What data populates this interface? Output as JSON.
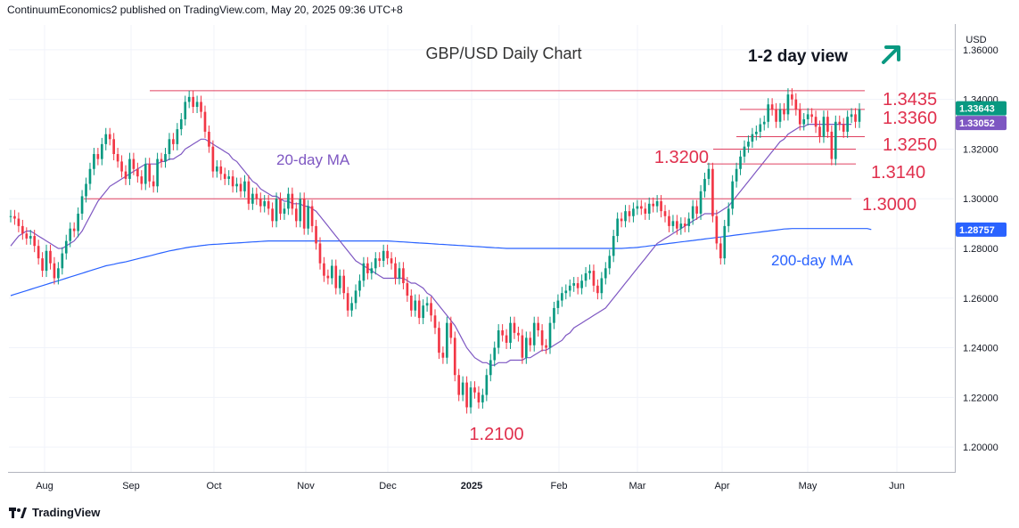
{
  "header": {
    "publisher_line": "ContinuumEconomics2 published on TradingView.com, May 20, 2025 09:36 UTC+8"
  },
  "footer": {
    "brand": "TradingView",
    "logo_icon": "tradingview-logo-icon"
  },
  "chart_data": {
    "type": "candlestick",
    "title": "GBP/USD Daily Chart",
    "view_label": "1-2 day view",
    "view_arrow": "up-right-arrow",
    "currency_label": "USD",
    "colors": {
      "up": "#089981",
      "down": "#f23645",
      "ma20": "#7e57c2",
      "ma200": "#2962ff",
      "levels": "#e04060",
      "label_red": "#e0304d",
      "arrow": "#089981"
    },
    "ylim": [
      1.19,
      1.37
    ],
    "y_ticks": [
      "1.36000",
      "1.34000",
      "1.32000",
      "1.30000",
      "1.28000",
      "1.26000",
      "1.24000",
      "1.22000",
      "1.20000"
    ],
    "x_ticks": [
      "Aug",
      "Sep",
      "Oct",
      "Nov",
      "Dec",
      "2025",
      "Feb",
      "Mar",
      "Apr",
      "May",
      "Jun"
    ],
    "price_badges": [
      {
        "value": "1.33643",
        "color": "#089981"
      },
      {
        "value": "1.33052",
        "color": "#7e57c2"
      },
      {
        "value": "1.28757",
        "color": "#2962ff"
      }
    ],
    "levels": [
      {
        "label": "1.3435",
        "value": 1.3435
      },
      {
        "label": "1.3360",
        "value": 1.336
      },
      {
        "label": "1.3250",
        "value": 1.325
      },
      {
        "label": "1.3200",
        "value": 1.32
      },
      {
        "label": "1.3140",
        "value": 1.314
      },
      {
        "label": "1.3000",
        "value": 1.3
      },
      {
        "label": "1.2100",
        "value": 1.21
      }
    ],
    "ma_labels": {
      "ma20": "20-day MA",
      "ma200": "200-day MA"
    },
    "closes": [
      1.293,
      1.292,
      1.289,
      1.286,
      1.284,
      1.285,
      1.281,
      1.276,
      1.271,
      1.279,
      1.274,
      1.268,
      1.272,
      1.278,
      1.283,
      1.288,
      1.287,
      1.294,
      1.301,
      1.306,
      1.312,
      1.318,
      1.316,
      1.322,
      1.326,
      1.324,
      1.318,
      1.315,
      1.311,
      1.308,
      1.316,
      1.312,
      1.309,
      1.306,
      1.314,
      1.307,
      1.305,
      1.316,
      1.315,
      1.318,
      1.324,
      1.322,
      1.328,
      1.332,
      1.339,
      1.341,
      1.337,
      1.339,
      1.335,
      1.327,
      1.321,
      1.311,
      1.313,
      1.31,
      1.308,
      1.309,
      1.305,
      1.306,
      1.303,
      1.307,
      1.298,
      1.302,
      1.3,
      1.297,
      1.299,
      1.296,
      1.291,
      1.3,
      1.294,
      1.296,
      1.302,
      1.296,
      1.291,
      1.3,
      1.288,
      1.297,
      1.289,
      1.282,
      1.274,
      1.269,
      1.268,
      1.273,
      1.264,
      1.269,
      1.262,
      1.255,
      1.258,
      1.263,
      1.267,
      1.274,
      1.27,
      1.272,
      1.276,
      1.275,
      1.279,
      1.276,
      1.274,
      1.268,
      1.272,
      1.266,
      1.261,
      1.255,
      1.259,
      1.252,
      1.257,
      1.258,
      1.253,
      1.248,
      1.238,
      1.236,
      1.25,
      1.244,
      1.229,
      1.221,
      1.226,
      1.216,
      1.224,
      1.222,
      1.218,
      1.221,
      1.229,
      1.235,
      1.24,
      1.247,
      1.245,
      1.242,
      1.25,
      1.246,
      1.245,
      1.236,
      1.244,
      1.241,
      1.25,
      1.247,
      1.241,
      1.24,
      1.25,
      1.256,
      1.259,
      1.262,
      1.263,
      1.265,
      1.266,
      1.264,
      1.267,
      1.27,
      1.271,
      1.265,
      1.262,
      1.268,
      1.272,
      1.277,
      1.285,
      1.292,
      1.291,
      1.295,
      1.293,
      1.296,
      1.297,
      1.296,
      1.294,
      1.298,
      1.297,
      1.299,
      1.295,
      1.293,
      1.289,
      1.291,
      1.288,
      1.29,
      1.289,
      1.292,
      1.297,
      1.294,
      1.303,
      1.308,
      1.312,
      1.293,
      1.282,
      1.276,
      1.289,
      1.296,
      1.307,
      1.312,
      1.317,
      1.321,
      1.323,
      1.326,
      1.327,
      1.33,
      1.331,
      1.338,
      1.336,
      1.331,
      1.336,
      1.334,
      1.342,
      1.34,
      1.336,
      1.33,
      1.332,
      1.334,
      1.333,
      1.329,
      1.325,
      1.333,
      1.327,
      1.316,
      1.331,
      1.33,
      1.327,
      1.333,
      1.334,
      1.331,
      1.336
    ],
    "ma20": [
      1.281,
      1.283,
      1.285,
      1.286,
      1.287,
      1.287,
      1.286,
      1.285,
      1.284,
      1.283,
      1.282,
      1.281,
      1.28,
      1.28,
      1.281,
      1.282,
      1.283,
      1.285,
      1.287,
      1.29,
      1.293,
      1.296,
      1.299,
      1.301,
      1.303,
      1.305,
      1.306,
      1.307,
      1.308,
      1.309,
      1.31,
      1.311,
      1.312,
      1.313,
      1.314,
      1.314,
      1.314,
      1.314,
      1.315,
      1.315,
      1.316,
      1.316,
      1.317,
      1.318,
      1.32,
      1.321,
      1.322,
      1.323,
      1.324,
      1.324,
      1.323,
      1.322,
      1.321,
      1.32,
      1.319,
      1.318,
      1.316,
      1.315,
      1.313,
      1.311,
      1.309,
      1.307,
      1.306,
      1.304,
      1.303,
      1.302,
      1.301,
      1.301,
      1.3,
      1.299,
      1.299,
      1.298,
      1.298,
      1.298,
      1.297,
      1.297,
      1.296,
      1.295,
      1.293,
      1.291,
      1.289,
      1.287,
      1.285,
      1.283,
      1.281,
      1.279,
      1.277,
      1.275,
      1.274,
      1.273,
      1.272,
      1.271,
      1.27,
      1.269,
      1.268,
      1.268,
      1.268,
      1.268,
      1.268,
      1.268,
      1.267,
      1.266,
      1.266,
      1.265,
      1.264,
      1.262,
      1.261,
      1.259,
      1.257,
      1.255,
      1.253,
      1.251,
      1.249,
      1.246,
      1.243,
      1.24,
      1.238,
      1.236,
      1.235,
      1.234,
      1.234,
      1.233,
      1.233,
      1.234,
      1.234,
      1.234,
      1.235,
      1.235,
      1.235,
      1.235,
      1.236,
      1.236,
      1.237,
      1.238,
      1.239,
      1.239,
      1.24,
      1.241,
      1.242,
      1.243,
      1.245,
      1.246,
      1.248,
      1.249,
      1.25,
      1.251,
      1.252,
      1.253,
      1.254,
      1.255,
      1.256,
      1.258,
      1.26,
      1.262,
      1.264,
      1.266,
      1.268,
      1.27,
      1.272,
      1.274,
      1.276,
      1.278,
      1.28,
      1.282,
      1.283,
      1.284,
      1.285,
      1.286,
      1.287,
      1.288,
      1.289,
      1.29,
      1.291,
      1.292,
      1.293,
      1.294,
      1.294,
      1.294,
      1.294,
      1.295,
      1.296,
      1.297,
      1.299,
      1.301,
      1.303,
      1.305,
      1.307,
      1.309,
      1.311,
      1.313,
      1.315,
      1.317,
      1.319,
      1.321,
      1.323,
      1.324,
      1.326,
      1.327,
      1.328,
      1.329,
      1.329,
      1.33,
      1.33,
      1.33,
      1.33,
      1.33,
      1.33,
      1.33,
      1.33,
      1.33,
      1.33,
      1.33,
      1.33
    ],
    "ma200": [
      1.261,
      1.2615,
      1.262,
      1.2625,
      1.263,
      1.2635,
      1.264,
      1.2645,
      1.265,
      1.2655,
      1.266,
      1.2665,
      1.267,
      1.2675,
      1.268,
      1.2685,
      1.269,
      1.2695,
      1.27,
      1.2705,
      1.271,
      1.2715,
      1.272,
      1.2725,
      1.273,
      1.2733,
      1.2736,
      1.274,
      1.2743,
      1.2746,
      1.275,
      1.2754,
      1.2758,
      1.2762,
      1.2766,
      1.277,
      1.2774,
      1.2778,
      1.2782,
      1.2786,
      1.279,
      1.2793,
      1.2796,
      1.2799,
      1.2802,
      1.2805,
      1.2807,
      1.2809,
      1.2811,
      1.2813,
      1.2815,
      1.2816,
      1.2817,
      1.2818,
      1.2819,
      1.282,
      1.2821,
      1.2822,
      1.2823,
      1.2824,
      1.2825,
      1.2826,
      1.2827,
      1.2828,
      1.2829,
      1.283,
      1.283,
      1.283,
      1.283,
      1.283,
      1.283,
      1.283,
      1.283,
      1.283,
      1.283,
      1.283,
      1.283,
      1.283,
      1.283,
      1.283,
      1.283,
      1.283,
      1.283,
      1.283,
      1.283,
      1.283,
      1.283,
      1.283,
      1.283,
      1.283,
      1.283,
      1.283,
      1.283,
      1.283,
      1.283,
      1.283,
      1.2829,
      1.2828,
      1.2827,
      1.2826,
      1.2825,
      1.2824,
      1.2823,
      1.2822,
      1.2821,
      1.282,
      1.2819,
      1.2818,
      1.2817,
      1.2816,
      1.2815,
      1.2814,
      1.2813,
      1.2812,
      1.2811,
      1.281,
      1.2809,
      1.2808,
      1.2807,
      1.2806,
      1.2805,
      1.2804,
      1.2803,
      1.2802,
      1.2801,
      1.28,
      1.28,
      1.28,
      1.28,
      1.28,
      1.28,
      1.28,
      1.28,
      1.28,
      1.28,
      1.28,
      1.28,
      1.28,
      1.28,
      1.28,
      1.28,
      1.28,
      1.28,
      1.28,
      1.28,
      1.28,
      1.28,
      1.28,
      1.28,
      1.28,
      1.28,
      1.28,
      1.28,
      1.28,
      1.28,
      1.2801,
      1.2802,
      1.2803,
      1.2804,
      1.2806,
      1.2808,
      1.281,
      1.2812,
      1.2814,
      1.2816,
      1.2818,
      1.282,
      1.2822,
      1.2824,
      1.2826,
      1.2828,
      1.283,
      1.2832,
      1.2834,
      1.2836,
      1.2838,
      1.284,
      1.2842,
      1.2844,
      1.2846,
      1.2848,
      1.285,
      1.2852,
      1.2854,
      1.2856,
      1.2858,
      1.286,
      1.2862,
      1.2864,
      1.2866,
      1.2868,
      1.287,
      1.2872,
      1.2874,
      1.2876,
      1.2878,
      1.2879,
      1.288,
      1.288,
      1.288,
      1.288,
      1.288,
      1.288,
      1.288,
      1.288,
      1.288,
      1.288,
      1.288,
      1.288,
      1.288,
      1.288,
      1.288,
      1.288,
      1.288,
      1.288,
      1.288,
      1.288,
      1.2876
    ]
  }
}
